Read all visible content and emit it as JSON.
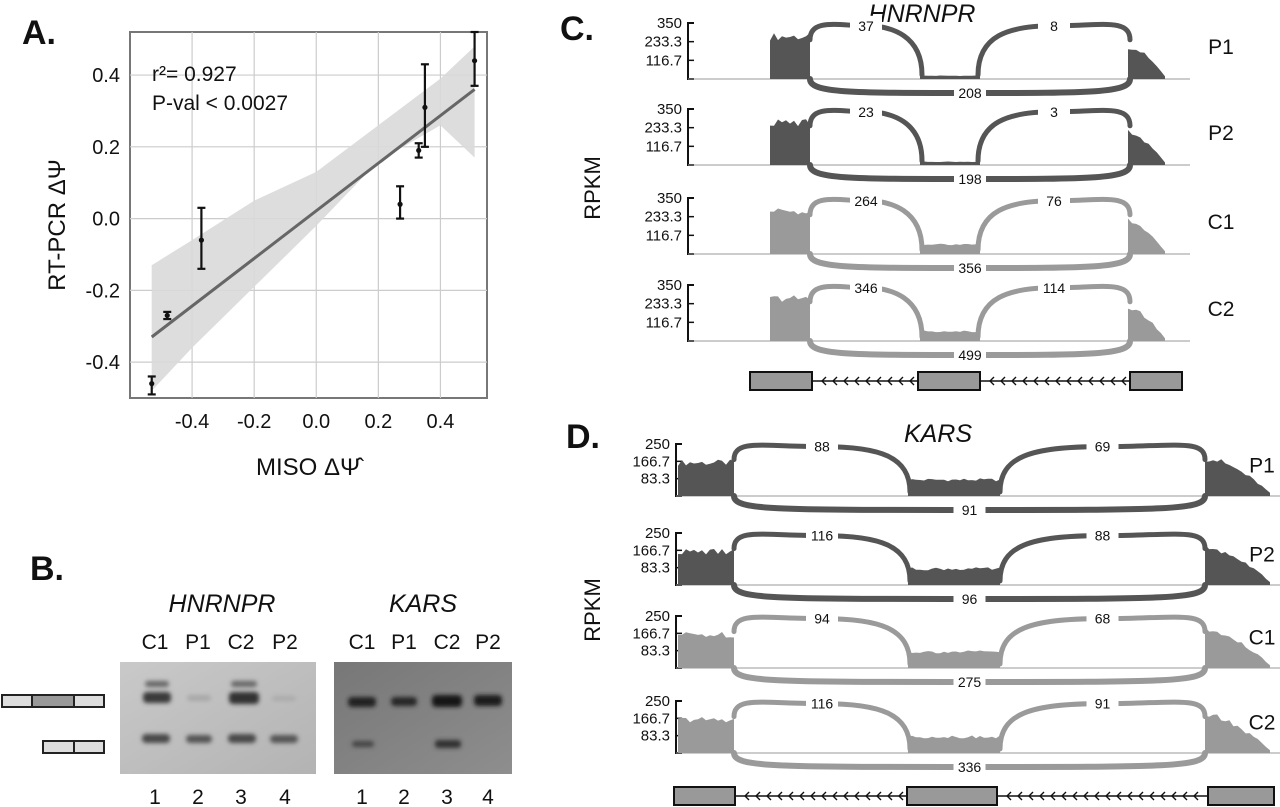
{
  "chart_data": [
    {
      "id": "A",
      "type": "scatter",
      "panel_label": "A.",
      "xlabel": "MISO ΔΨ̂",
      "ylabel": "RT-PCR ΔΨ",
      "xlim": [
        -0.6,
        0.55
      ],
      "ylim": [
        -0.5,
        0.52
      ],
      "x_ticks": [
        -0.4,
        -0.2,
        0.0,
        0.2,
        0.4
      ],
      "x_tick_labels": [
        "-0.4",
        "-0.2",
        "0.0",
        "0.2",
        "0.4"
      ],
      "y_ticks": [
        -0.4,
        -0.2,
        0.0,
        0.2,
        0.4
      ],
      "y_tick_labels": [
        "-0.4",
        "-0.2",
        "0.0",
        "0.2",
        "0.4"
      ],
      "grid": true,
      "r2_label": "r²= 0.927",
      "pval_label": "P-val < 0.0027",
      "fit": {
        "x": [
          -0.53,
          0.51
        ],
        "y": [
          -0.33,
          0.36
        ]
      },
      "band_upper": [
        [
          -0.53,
          -0.13
        ],
        [
          -0.4,
          -0.06
        ],
        [
          -0.2,
          0.05
        ],
        [
          0.0,
          0.13
        ],
        [
          0.2,
          0.26
        ],
        [
          0.4,
          0.39
        ],
        [
          0.51,
          0.48
        ]
      ],
      "band_lower": [
        [
          -0.53,
          -0.48
        ],
        [
          -0.4,
          -0.36
        ],
        [
          -0.2,
          -0.19
        ],
        [
          0.0,
          -0.02
        ],
        [
          0.2,
          0.16
        ],
        [
          0.4,
          0.26
        ],
        [
          0.51,
          0.17
        ]
      ],
      "points": [
        {
          "x": -0.53,
          "y": -0.46,
          "lo": -0.49,
          "hi": -0.44
        },
        {
          "x": -0.48,
          "y": -0.27,
          "lo": -0.28,
          "hi": -0.26
        },
        {
          "x": -0.37,
          "y": -0.06,
          "lo": -0.14,
          "hi": 0.03
        },
        {
          "x": 0.27,
          "y": 0.04,
          "lo": 0.0,
          "hi": 0.09
        },
        {
          "x": 0.33,
          "y": 0.19,
          "lo": 0.17,
          "hi": 0.21
        },
        {
          "x": 0.35,
          "y": 0.31,
          "lo": 0.2,
          "hi": 0.43
        },
        {
          "x": 0.51,
          "y": 0.44,
          "lo": 0.37,
          "hi": 0.52
        }
      ]
    },
    {
      "id": "C",
      "type": "area",
      "panel_label": "C.",
      "gene": "HNRNPR",
      "ylabel": "RPKM",
      "y_tick_labels": [
        "350",
        "233.3",
        "116.7"
      ],
      "tracks": [
        {
          "sample": "P1",
          "shade": "dark",
          "junctions": [
            "37",
            "8",
            "208"
          ]
        },
        {
          "sample": "P2",
          "shade": "dark",
          "junctions": [
            "23",
            "3",
            "198"
          ]
        },
        {
          "sample": "C1",
          "shade": "light",
          "junctions": [
            "264",
            "76",
            "356"
          ]
        },
        {
          "sample": "C2",
          "shade": "light",
          "junctions": [
            "346",
            "114",
            "499"
          ]
        }
      ]
    },
    {
      "id": "D",
      "type": "area",
      "panel_label": "D.",
      "gene": "KARS",
      "ylabel": "RPKM",
      "y_tick_labels": [
        "250",
        "166.7",
        "83.3"
      ],
      "tracks": [
        {
          "sample": "P1",
          "shade": "dark",
          "junctions": [
            "88",
            "69",
            "91"
          ]
        },
        {
          "sample": "P2",
          "shade": "dark",
          "junctions": [
            "116",
            "88",
            "96"
          ]
        },
        {
          "sample": "C1",
          "shade": "light",
          "junctions": [
            "94",
            "68",
            "275"
          ]
        },
        {
          "sample": "C2",
          "shade": "light",
          "junctions": [
            "116",
            "91",
            "336"
          ]
        }
      ]
    }
  ],
  "gel": {
    "panel_label": "B.",
    "genes": [
      {
        "name": "HNRNPR",
        "lanes": [
          "C1",
          "P1",
          "C2",
          "P2"
        ]
      },
      {
        "name": "KARS",
        "lanes": [
          "C1",
          "P1",
          "C2",
          "P2"
        ]
      }
    ],
    "lane_numbers": [
      "1",
      "2",
      "3",
      "4"
    ]
  },
  "colors": {
    "dark": "#555555",
    "light": "#9a9a9a",
    "band": "#d9d9d9",
    "fit": "#666666"
  }
}
